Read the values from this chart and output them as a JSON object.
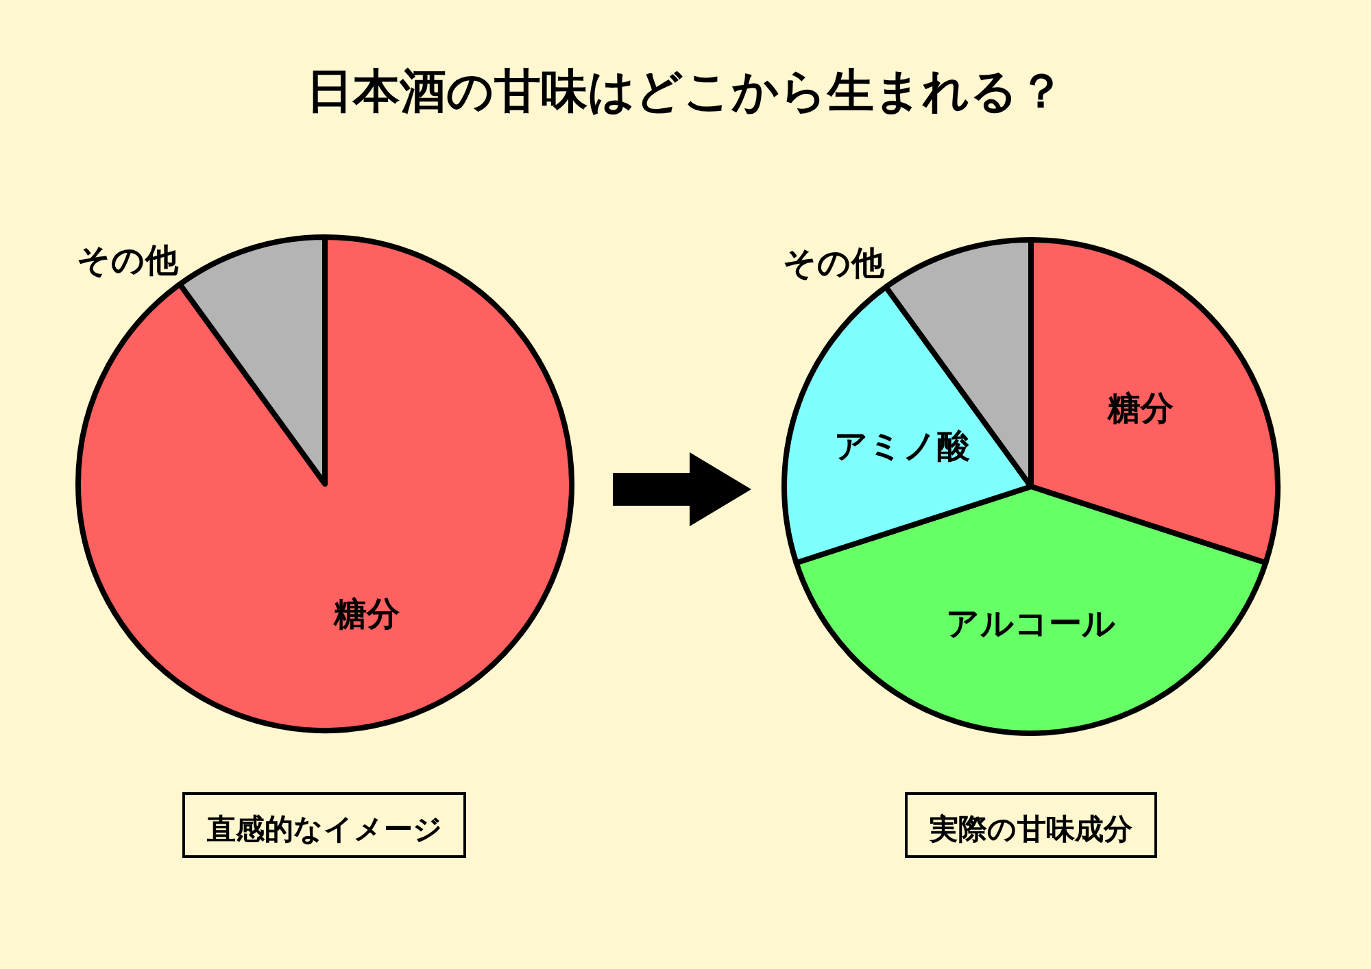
{
  "chart_data": [
    {
      "type": "pie",
      "title": "日本酒の甘味はどこから生まれる？",
      "subtitle": "直感的なイメージ",
      "categories": [
        "糖分",
        "その他"
      ],
      "values": [
        90,
        10
      ],
      "colors": [
        "#ff6060",
        "#b4b4b4"
      ]
    },
    {
      "type": "pie",
      "subtitle": "実際の甘味成分",
      "categories": [
        "糖分",
        "アルコール",
        "アミノ酸",
        "その他"
      ],
      "values": [
        30,
        40,
        20,
        10
      ],
      "colors": [
        "#ff6060",
        "#66ff66",
        "#80ffff",
        "#b4b4b4"
      ]
    }
  ]
}
